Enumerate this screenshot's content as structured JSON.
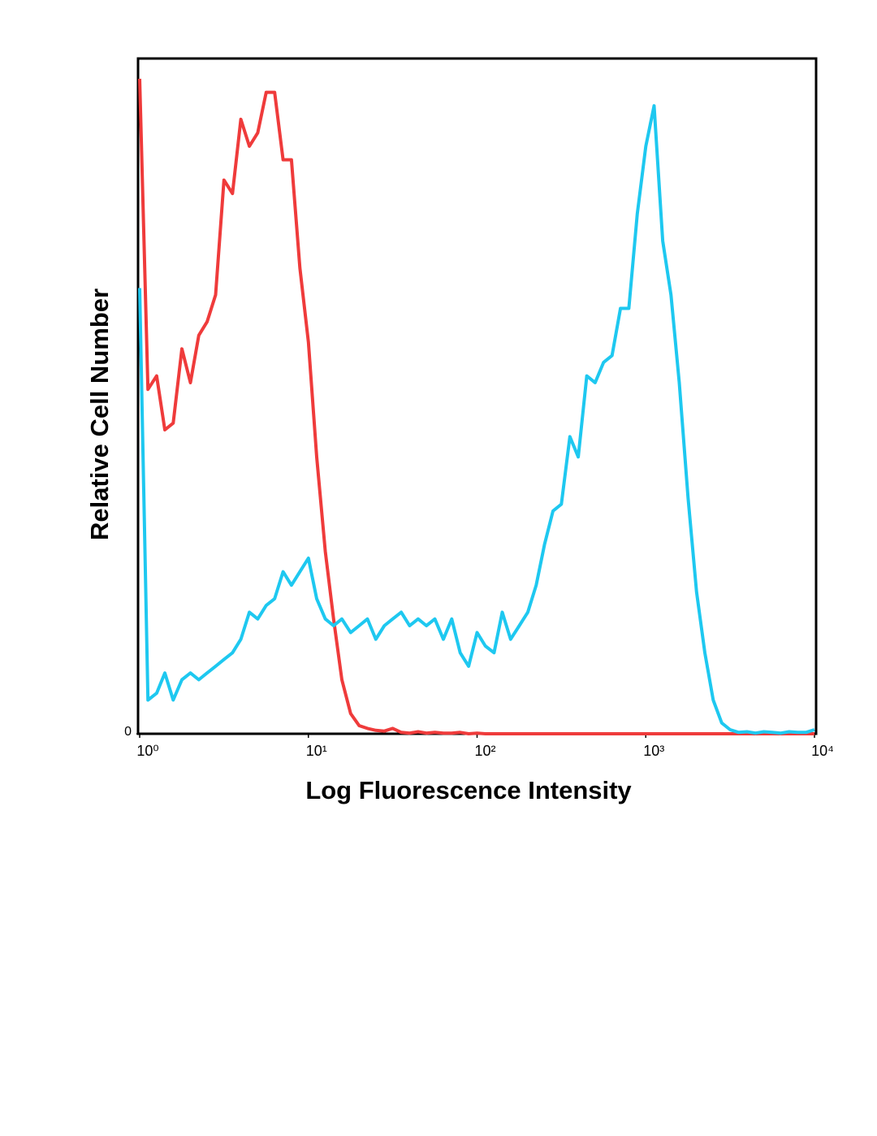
{
  "chart_data": {
    "type": "line",
    "xlabel": "Log Fluorescence Intensity",
    "ylabel": "Relative Cell Number",
    "xscale": "log",
    "xlim": [
      1,
      10000
    ],
    "xticks": [
      {
        "value": 1,
        "label": "10⁰"
      },
      {
        "value": 10,
        "label": "10¹"
      },
      {
        "value": 100,
        "label": "10²"
      },
      {
        "value": 1000,
        "label": "10³"
      },
      {
        "value": 10000,
        "label": "10⁴"
      }
    ],
    "ylim": [
      0,
      100
    ],
    "yticks": [
      0
    ],
    "x": [
      1,
      1.12,
      1.26,
      1.41,
      1.58,
      1.78,
      2,
      2.24,
      2.51,
      2.82,
      3.16,
      3.55,
      3.98,
      4.47,
      5.01,
      5.62,
      6.31,
      7.08,
      7.94,
      8.91,
      10,
      11.2,
      12.6,
      14.1,
      15.8,
      17.8,
      20,
      22.4,
      25.1,
      28.2,
      31.6,
      35.5,
      39.8,
      44.7,
      50.1,
      56.2,
      63.1,
      70.8,
      79.4,
      89.1,
      100,
      112,
      126,
      141,
      158,
      178,
      200,
      224,
      251,
      282,
      316,
      355,
      398,
      447,
      501,
      562,
      631,
      708,
      794,
      891,
      1000,
      1120,
      1260,
      1410,
      1580,
      1780,
      2000,
      2240,
      2510,
      2820,
      3160,
      3550,
      3980,
      4470,
      5010,
      5620,
      6310,
      7080,
      7940,
      8910,
      10000
    ],
    "series": [
      {
        "color": "#ef3b3b",
        "values": [
          97,
          51,
          53,
          45,
          46,
          57,
          52,
          59,
          61,
          65,
          82,
          80,
          91,
          87,
          89,
          95,
          95,
          85,
          85,
          69,
          58,
          41,
          27,
          17,
          8,
          3,
          1.2,
          0.8,
          0.5,
          0.4,
          0.8,
          0.2,
          0.1,
          0.3,
          0.1,
          0.2,
          0.1,
          0.1,
          0.2,
          0,
          0.1,
          0,
          0,
          0,
          0,
          0,
          0,
          0,
          0,
          0,
          0,
          0,
          0,
          0,
          0,
          0,
          0,
          0,
          0,
          0,
          0,
          0,
          0,
          0,
          0,
          0,
          0,
          0,
          0,
          0,
          0,
          0,
          0,
          0,
          0,
          0,
          0,
          0,
          0,
          0,
          0
        ]
      },
      {
        "color": "#1ec8f0",
        "values": [
          66,
          5,
          6,
          9,
          5,
          8,
          9,
          8,
          9,
          10,
          11,
          12,
          14,
          18,
          17,
          19,
          20,
          24,
          22,
          24,
          26,
          20,
          17,
          16,
          17,
          15,
          16,
          17,
          14,
          16,
          17,
          18,
          16,
          17,
          16,
          17,
          14,
          17,
          12,
          10,
          15,
          13,
          12,
          18,
          14,
          16,
          18,
          22,
          28,
          33,
          34,
          44,
          41,
          53,
          52,
          55,
          56,
          63,
          63,
          77,
          87,
          93,
          73,
          65,
          52,
          35,
          21,
          12,
          5,
          1.6,
          0.6,
          0.2,
          0.3,
          0.1,
          0.3,
          0.2,
          0.1,
          0.3,
          0.2,
          0.2,
          0.6
        ]
      }
    ]
  }
}
